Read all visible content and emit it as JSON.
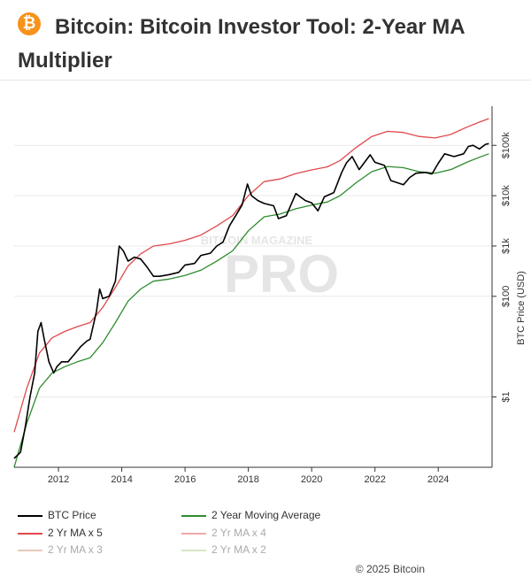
{
  "header": {
    "logo_glyph": "₿",
    "title": "Bitcoin: Bitcoin Investor Tool: 2-Year MA Multiplier"
  },
  "watermark": {
    "top": "BITCOIN MAGAZINE",
    "bottom": "PRO"
  },
  "footer": {
    "copyright": "© 2025 Bitcoin"
  },
  "colors": {
    "btc_price": "#000000",
    "ma": "#2e8b2e",
    "ma_x5": "#e0484b",
    "ma_x4": "#f0a9a9",
    "ma_x3": "#e8c9b8",
    "ma_x2": "#d8e6c4"
  },
  "chart_data": {
    "type": "line",
    "title": "",
    "xlabel": "",
    "ylabel": "BTC Price (USD)",
    "yscale": "log",
    "xlim": [
      2010.6,
      2025.7
    ],
    "ylim": [
      0.04,
      600000
    ],
    "grid": true,
    "x_ticks": [
      "2012",
      "2014",
      "2016",
      "2018",
      "2020",
      "2022",
      "2024"
    ],
    "y_ticks": [
      "$1",
      "$100",
      "$1k",
      "$10k",
      "$100k"
    ],
    "y_tick_values": [
      1,
      100,
      1000,
      10000,
      100000
    ],
    "legend_position": "bottom",
    "series": [
      {
        "name": "BTC Price",
        "color": "#000000",
        "points": [
          [
            2010.6,
            0.06
          ],
          [
            2010.8,
            0.08
          ],
          [
            2010.95,
            0.25
          ],
          [
            2011.1,
            1
          ],
          [
            2011.25,
            3
          ],
          [
            2011.35,
            20
          ],
          [
            2011.45,
            30
          ],
          [
            2011.55,
            14
          ],
          [
            2011.7,
            5
          ],
          [
            2011.85,
            3
          ],
          [
            2011.95,
            4
          ],
          [
            2012.1,
            5
          ],
          [
            2012.3,
            5
          ],
          [
            2012.5,
            7
          ],
          [
            2012.7,
            10
          ],
          [
            2012.9,
            13
          ],
          [
            2013.0,
            14
          ],
          [
            2013.2,
            50
          ],
          [
            2013.3,
            140
          ],
          [
            2013.4,
            90
          ],
          [
            2013.6,
            100
          ],
          [
            2013.8,
            200
          ],
          [
            2013.92,
            1000
          ],
          [
            2014.05,
            800
          ],
          [
            2014.2,
            500
          ],
          [
            2014.4,
            600
          ],
          [
            2014.6,
            550
          ],
          [
            2014.8,
            380
          ],
          [
            2015.0,
            250
          ],
          [
            2015.2,
            250
          ],
          [
            2015.5,
            270
          ],
          [
            2015.8,
            300
          ],
          [
            2016.0,
            420
          ],
          [
            2016.3,
            450
          ],
          [
            2016.5,
            650
          ],
          [
            2016.8,
            720
          ],
          [
            2017.0,
            1000
          ],
          [
            2017.2,
            1200
          ],
          [
            2017.4,
            2500
          ],
          [
            2017.6,
            4000
          ],
          [
            2017.8,
            6500
          ],
          [
            2017.97,
            17000
          ],
          [
            2018.1,
            10000
          ],
          [
            2018.3,
            8000
          ],
          [
            2018.5,
            7000
          ],
          [
            2018.8,
            6300
          ],
          [
            2018.95,
            3500
          ],
          [
            2019.2,
            4000
          ],
          [
            2019.5,
            11000
          ],
          [
            2019.8,
            8000
          ],
          [
            2020.0,
            7200
          ],
          [
            2020.2,
            5000
          ],
          [
            2020.4,
            9500
          ],
          [
            2020.7,
            11500
          ],
          [
            2020.95,
            29000
          ],
          [
            2021.1,
            45000
          ],
          [
            2021.28,
            60000
          ],
          [
            2021.5,
            33000
          ],
          [
            2021.85,
            65000
          ],
          [
            2022.0,
            46000
          ],
          [
            2022.3,
            40000
          ],
          [
            2022.5,
            20000
          ],
          [
            2022.9,
            16500
          ],
          [
            2023.1,
            23000
          ],
          [
            2023.3,
            28000
          ],
          [
            2023.6,
            29000
          ],
          [
            2023.8,
            27000
          ],
          [
            2024.0,
            44000
          ],
          [
            2024.2,
            68000
          ],
          [
            2024.5,
            60000
          ],
          [
            2024.8,
            68000
          ],
          [
            2024.95,
            95000
          ],
          [
            2025.1,
            100000
          ],
          [
            2025.3,
            85000
          ],
          [
            2025.5,
            105000
          ],
          [
            2025.6,
            108000
          ]
        ]
      },
      {
        "name": "2 Year Moving Average",
        "color": "#2e8b2e",
        "points": [
          [
            2010.6,
            0.04
          ],
          [
            2011.0,
            0.3
          ],
          [
            2011.4,
            1.5
          ],
          [
            2011.8,
            3
          ],
          [
            2012.2,
            4
          ],
          [
            2012.6,
            5
          ],
          [
            2013.0,
            6
          ],
          [
            2013.4,
            12
          ],
          [
            2013.8,
            30
          ],
          [
            2014.2,
            80
          ],
          [
            2014.6,
            140
          ],
          [
            2015.0,
            200
          ],
          [
            2015.5,
            220
          ],
          [
            2016.0,
            260
          ],
          [
            2016.5,
            330
          ],
          [
            2017.0,
            500
          ],
          [
            2017.5,
            800
          ],
          [
            2018.0,
            2000
          ],
          [
            2018.5,
            3800
          ],
          [
            2019.0,
            4300
          ],
          [
            2019.5,
            5500
          ],
          [
            2020.0,
            6500
          ],
          [
            2020.5,
            7500
          ],
          [
            2020.9,
            10000
          ],
          [
            2021.4,
            18000
          ],
          [
            2021.9,
            30000
          ],
          [
            2022.4,
            38000
          ],
          [
            2022.9,
            36000
          ],
          [
            2023.4,
            30000
          ],
          [
            2023.9,
            28000
          ],
          [
            2024.4,
            33000
          ],
          [
            2024.9,
            46000
          ],
          [
            2025.3,
            58000
          ],
          [
            2025.6,
            68000
          ]
        ]
      },
      {
        "name": "2 Yr MA x 5",
        "color": "#e0484b",
        "points": [
          [
            2010.6,
            0.2
          ],
          [
            2011.0,
            1.5
          ],
          [
            2011.4,
            7.5
          ],
          [
            2011.8,
            15
          ],
          [
            2012.2,
            20
          ],
          [
            2012.6,
            25
          ],
          [
            2013.0,
            30
          ],
          [
            2013.4,
            60
          ],
          [
            2013.8,
            150
          ],
          [
            2014.2,
            400
          ],
          [
            2014.6,
            700
          ],
          [
            2015.0,
            1000
          ],
          [
            2015.5,
            1100
          ],
          [
            2016.0,
            1300
          ],
          [
            2016.5,
            1650
          ],
          [
            2017.0,
            2500
          ],
          [
            2017.5,
            4000
          ],
          [
            2018.0,
            10000
          ],
          [
            2018.5,
            19000
          ],
          [
            2019.0,
            21500
          ],
          [
            2019.5,
            27500
          ],
          [
            2020.0,
            32500
          ],
          [
            2020.5,
            37500
          ],
          [
            2020.9,
            50000
          ],
          [
            2021.4,
            90000
          ],
          [
            2021.9,
            150000
          ],
          [
            2022.4,
            190000
          ],
          [
            2022.9,
            180000
          ],
          [
            2023.4,
            150000
          ],
          [
            2023.9,
            140000
          ],
          [
            2024.4,
            165000
          ],
          [
            2024.9,
            230000
          ],
          [
            2025.3,
            290000
          ],
          [
            2025.6,
            340000
          ]
        ]
      },
      {
        "name": "2 Yr MA x 4",
        "color": "#f0a9a9",
        "points": []
      },
      {
        "name": "2 Yr MA x 3",
        "color": "#e8c9b8",
        "points": []
      },
      {
        "name": "2 Yr MA x 2",
        "color": "#d8e6c4",
        "points": []
      }
    ]
  },
  "legend": [
    {
      "label": "BTC Price",
      "color": "#000000",
      "active": true
    },
    {
      "label": "2 Year Moving Average",
      "color": "#2e8b2e",
      "active": true
    },
    {
      "label": "2 Yr MA x 5",
      "color": "#e0484b",
      "active": true
    },
    {
      "label": "2 Yr MA x 4",
      "color": "#f0a9a9",
      "active": false
    },
    {
      "label": "2 Yr MA x 3",
      "color": "#e8c9b8",
      "active": false
    },
    {
      "label": "2 Yr MA x 2",
      "color": "#d8e6c4",
      "active": false
    }
  ]
}
